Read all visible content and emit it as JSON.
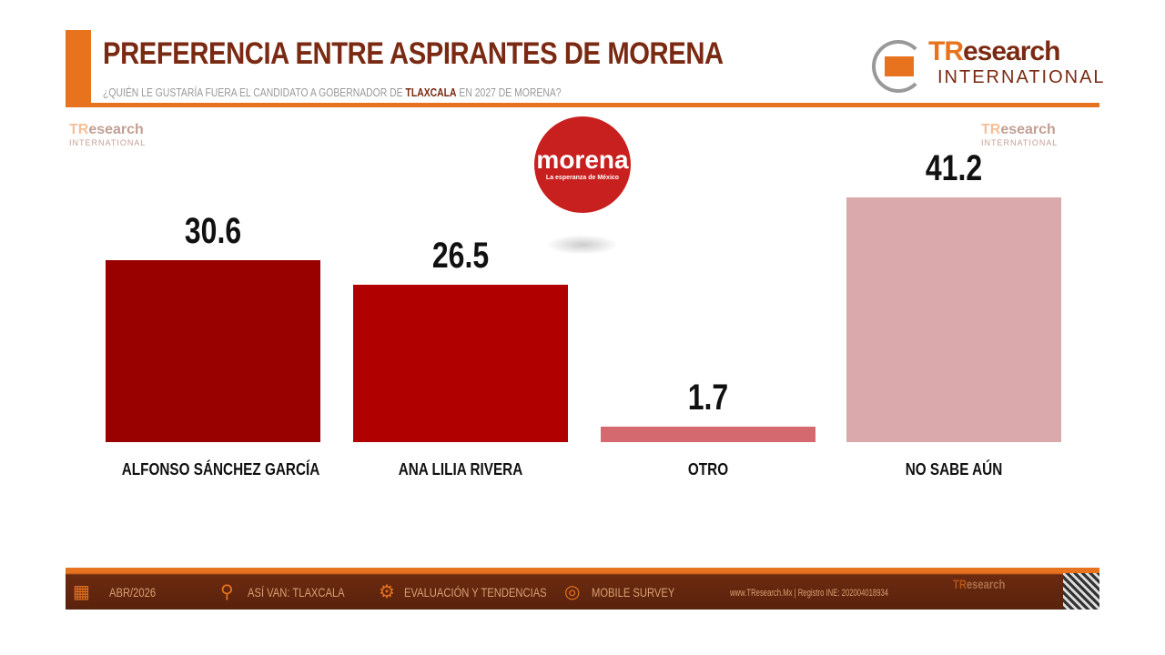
{
  "header": {
    "title": "PREFERENCIA ENTRE ASPIRANTES DE MORENA",
    "subtitle_pre": "¿QUIÉN LE GUSTARÍA FUERA EL CANDIDATO A GOBERNADOR DE ",
    "subtitle_bold": "TLAXCALA",
    "subtitle_post": " EN 2027 DE MORENA?"
  },
  "logo": {
    "brand_a": "TR",
    "brand_b": "esearch",
    "sub": "INTERNATIONAL"
  },
  "morena_logo": {
    "name": "morena",
    "tagline": "La esperanza de México"
  },
  "chart_data": {
    "type": "bar",
    "categories": [
      "ALFONSO SÁNCHEZ GARCÍA",
      "ANA LILIA RIVERA",
      "OTRO",
      "NO SABE AÚN"
    ],
    "values": [
      30.6,
      26.5,
      1.7,
      41.2
    ],
    "labels": [
      "30.6",
      "26.5",
      "1.7",
      "41.2"
    ],
    "colors": [
      "#990000",
      "#b00000",
      "#d46a70",
      "#d9a9ab"
    ],
    "ylim": [
      0,
      41.2
    ],
    "grid": false
  },
  "footer": {
    "date": "ABR/2026",
    "location": "ASÍ VAN: TLAXCALA",
    "eval": "EVALUACIÓN Y TENDENCIAS",
    "survey": "MOBILE SURVEY",
    "registry": "www.TResearch.Mx | Registro INE: 202004018934"
  }
}
